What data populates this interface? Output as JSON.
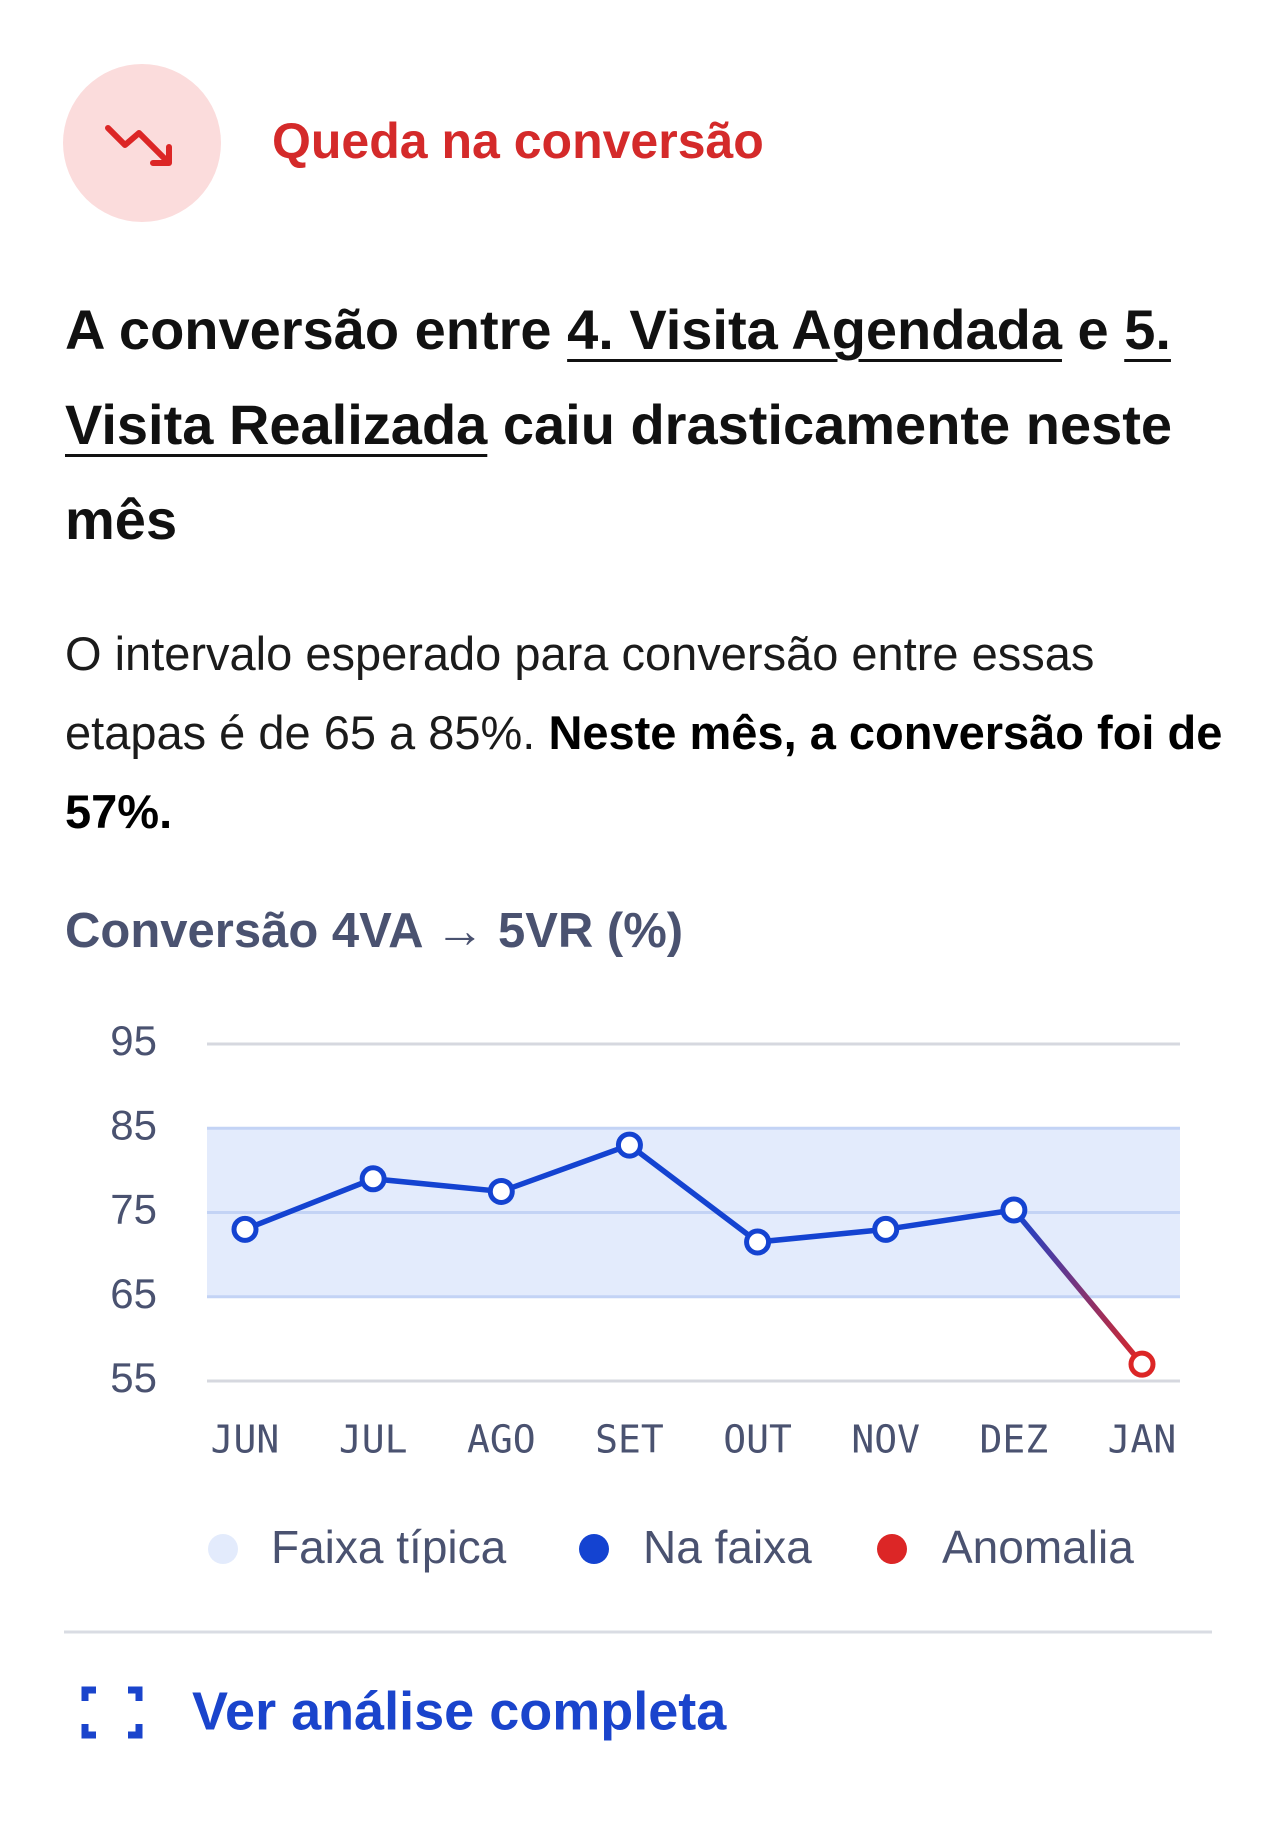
{
  "header": {
    "title": "Queda na conversão"
  },
  "headline": {
    "parts": [
      {
        "text": "A conversão entre "
      },
      {
        "text": "4. Visita Agendada",
        "link": true
      },
      {
        "text": " e "
      },
      {
        "text": "5. Visita Realizada",
        "link": true
      },
      {
        "text": " caiu drasticamente neste mês"
      }
    ]
  },
  "description": {
    "text": "O intervalo esperado para conversão entre essas etapas é de 65 a 85%. ",
    "emphasis": "Neste mês, a conversão foi de 57%."
  },
  "chart_data": {
    "type": "line",
    "title": "Conversão 4VA → 5VR (%)",
    "categories": [
      "JUN",
      "JUL",
      "AGO",
      "SET",
      "OUT",
      "NOV",
      "DEZ",
      "JAN"
    ],
    "band": {
      "name": "Faixa típica",
      "range": [
        65,
        85
      ],
      "color": "#e3ebfc"
    },
    "series": [
      {
        "name": "Na faixa",
        "color": "#1443d1",
        "values": [
          73,
          79,
          77.5,
          83,
          71.5,
          73,
          75.3,
          null
        ]
      },
      {
        "name": "Anomalia",
        "color": "#dc2626",
        "values": [
          null,
          null,
          null,
          null,
          null,
          null,
          null,
          57
        ]
      }
    ],
    "ylim": [
      55,
      95
    ],
    "yticks": [
      55,
      65,
      75,
      85,
      95
    ],
    "grid": true
  },
  "footer": {
    "link": "Ver análise completa"
  }
}
